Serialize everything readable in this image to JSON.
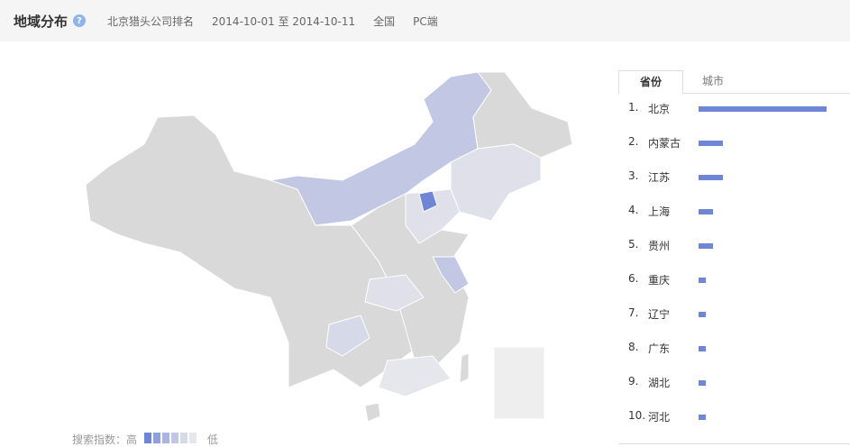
{
  "header": {
    "title": "地域分布",
    "help_icon": "question-icon",
    "keyword": "北京猎头公司排名",
    "date_range": "2014-10-01 至 2014-10-11",
    "region": "全国",
    "device": "PC端"
  },
  "legend": {
    "label": "搜索指数：高",
    "low": "低",
    "colors": [
      "#6f86d6",
      "#8fa0db",
      "#aab5e0",
      "#c2c8e3",
      "#d6d9e8",
      "#e6e7ec"
    ]
  },
  "tabs": [
    {
      "label": "省份",
      "active": true
    },
    {
      "label": "城市",
      "active": false
    }
  ],
  "ranking": [
    {
      "rank": "1.",
      "name": "北京",
      "value": 100
    },
    {
      "rank": "2.",
      "name": "内蒙古",
      "value": 19
    },
    {
      "rank": "3.",
      "name": "江苏",
      "value": 19
    },
    {
      "rank": "4.",
      "name": "上海",
      "value": 11
    },
    {
      "rank": "5.",
      "name": "贵州",
      "value": 11
    },
    {
      "rank": "6.",
      "name": "重庆",
      "value": 5
    },
    {
      "rank": "7.",
      "name": "辽宁",
      "value": 5
    },
    {
      "rank": "8.",
      "name": "广东",
      "value": 5
    },
    {
      "rank": "9.",
      "name": "湖北",
      "value": 5
    },
    {
      "rank": "10.",
      "name": "河北",
      "value": 5
    }
  ],
  "colors": {
    "bar": "#6f86d6",
    "map_base": "#d9d9d9"
  }
}
